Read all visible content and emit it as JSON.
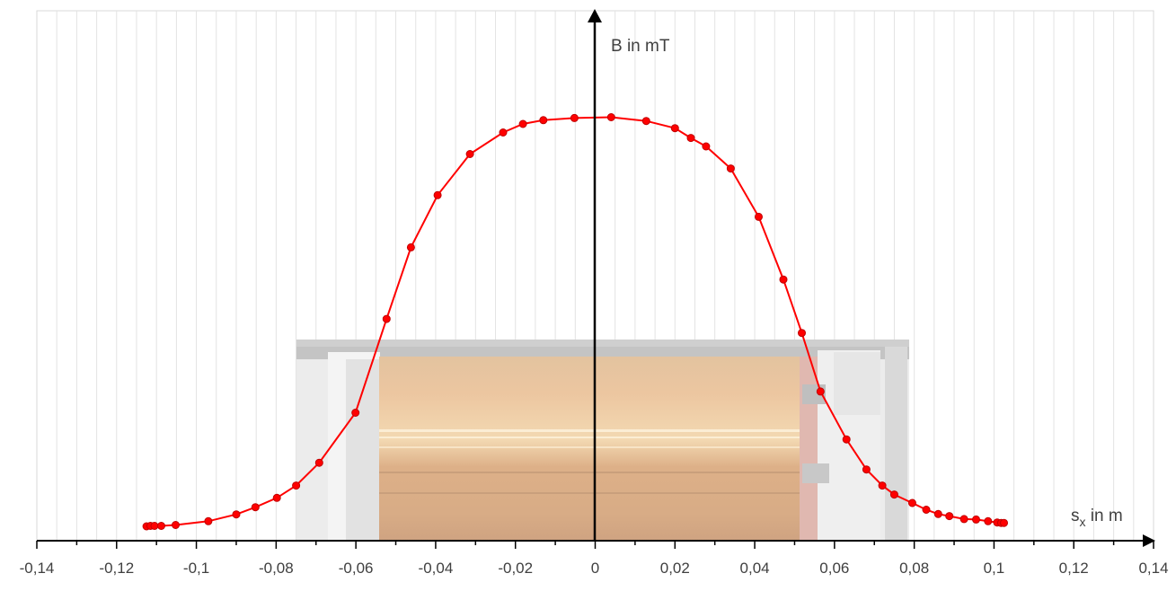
{
  "chart_data": {
    "type": "scatter",
    "title": "",
    "xlabel_main": "s",
    "xlabel_sub": "x",
    "xlabel_rest": " in m",
    "ylabel": "B in mT",
    "xlim": [
      -0.14,
      0.14
    ],
    "xticks": [
      "-0,14",
      "-0,12",
      "-0,1",
      "-0,08",
      "-0,06",
      "-0,04",
      "-0,02",
      "0",
      "0,02",
      "0,04",
      "0,06",
      "0,08",
      "0,1",
      "0,12",
      "0,14"
    ],
    "y_tick_labels_shown": false,
    "grid": "vertical",
    "series_color": "#ff0000",
    "marker_edge_color": "#c00000",
    "series": [
      {
        "name": "",
        "points": [
          [
            -0.1125,
            0.034
          ],
          [
            -0.1115,
            0.035
          ],
          [
            -0.1105,
            0.035
          ],
          [
            -0.1088,
            0.035
          ],
          [
            -0.1052,
            0.037
          ],
          [
            -0.097,
            0.046
          ],
          [
            -0.09,
            0.062
          ],
          [
            -0.0852,
            0.079
          ],
          [
            -0.0798,
            0.101
          ],
          [
            -0.075,
            0.13
          ],
          [
            -0.0692,
            0.184
          ],
          [
            -0.0601,
            0.302
          ],
          [
            -0.0523,
            0.523
          ],
          [
            -0.0462,
            0.692
          ],
          [
            -0.0395,
            0.815
          ],
          [
            -0.0314,
            0.912
          ],
          [
            -0.0231,
            0.963
          ],
          [
            -0.0181,
            0.983
          ],
          [
            -0.013,
            0.992
          ],
          [
            -0.0052,
            0.997
          ],
          [
            0.004,
            0.999
          ],
          [
            0.0128,
            0.99
          ],
          [
            0.02,
            0.973
          ],
          [
            0.024,
            0.95
          ],
          [
            0.0278,
            0.93
          ],
          [
            0.034,
            0.878
          ],
          [
            0.041,
            0.764
          ],
          [
            0.0472,
            0.616
          ],
          [
            0.0518,
            0.49
          ],
          [
            0.0565,
            0.352
          ],
          [
            0.063,
            0.239
          ],
          [
            0.068,
            0.168
          ],
          [
            0.072,
            0.13
          ],
          [
            0.075,
            0.109
          ],
          [
            0.0795,
            0.089
          ],
          [
            0.083,
            0.073
          ],
          [
            0.086,
            0.063
          ],
          [
            0.0888,
            0.058
          ],
          [
            0.0925,
            0.051
          ],
          [
            0.0955,
            0.05
          ],
          [
            0.0985,
            0.046
          ],
          [
            0.1008,
            0.043
          ],
          [
            0.1018,
            0.042
          ],
          [
            0.1025,
            0.042
          ]
        ]
      }
    ]
  }
}
